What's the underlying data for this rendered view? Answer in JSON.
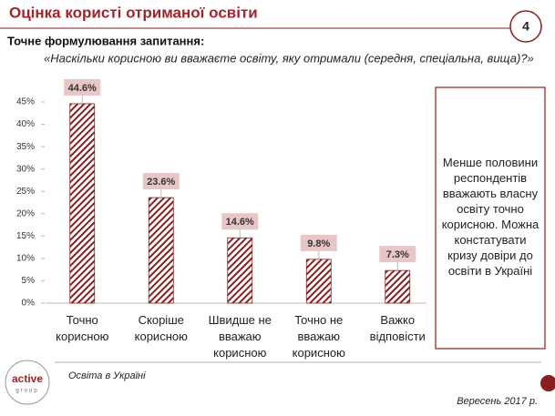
{
  "header": {
    "title": "Оцінка користі отриманої освіти",
    "page_number": "4"
  },
  "question_label": "Точне формулювання запитання:",
  "question": "«Наскільки корисною ви вважаєте освіту, яку отримали (середня, спеціальна, вища)?»",
  "chart_data": {
    "type": "bar",
    "categories": [
      "Точно корисною",
      "Скоріше корисною",
      "Швидше не вважаю корисною",
      "Точно не вважаю корисною",
      "Важко відповісти"
    ],
    "values": [
      44.6,
      23.6,
      14.6,
      9.8,
      7.3
    ],
    "value_labels": [
      "44.6%",
      "23.6%",
      "14.6%",
      "9.8%",
      "7.3%"
    ],
    "color": "#8b1e1e",
    "ylim": [
      0,
      45
    ],
    "yticks": [
      {
        "value": 0,
        "label": "0%"
      },
      {
        "value": 5,
        "label": "5%"
      },
      {
        "value": 10,
        "label": "10%"
      },
      {
        "value": 15,
        "label": "15%"
      },
      {
        "value": 20,
        "label": "20%"
      },
      {
        "value": 25,
        "label": "25%"
      },
      {
        "value": 30,
        "label": "30%"
      },
      {
        "value": 35,
        "label": "35%"
      },
      {
        "value": 40,
        "label": "40%"
      },
      {
        "value": 45,
        "label": "45%"
      }
    ]
  },
  "note": "Менше половини респондентів вважають власну освіту точно корисною. Можна констатувати кризу довіри до освіти в Україні",
  "logo": {
    "name": "active",
    "sub": "group"
  },
  "footer": {
    "source": "Освіта в Україні",
    "date": "Вересень 2017 р."
  }
}
